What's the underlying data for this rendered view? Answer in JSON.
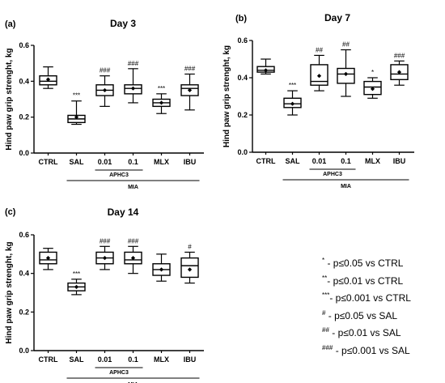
{
  "chart_data": [
    {
      "type": "box",
      "label": "(a)",
      "title": "Day 3",
      "ylabel": "Hind paw grip strenght, kg",
      "ylim": [
        0.0,
        0.6
      ],
      "yticks": [
        "0.0",
        "0.2",
        "0.4",
        "0.6"
      ],
      "categories": [
        "CTRL",
        "SAL",
        "0.01",
        "0.1",
        "MLX",
        "IBU"
      ],
      "subgroup_label": "APHC3",
      "group_label": "MIA",
      "significance": [
        "",
        "***",
        "###",
        "###",
        "***",
        "###"
      ],
      "boxes": [
        {
          "min": 0.36,
          "q1": 0.38,
          "median": 0.4,
          "q3": 0.43,
          "max": 0.48,
          "mean": 0.41
        },
        {
          "min": 0.16,
          "q1": 0.17,
          "median": 0.19,
          "q3": 0.21,
          "max": 0.29,
          "mean": 0.2
        },
        {
          "min": 0.26,
          "q1": 0.32,
          "median": 0.35,
          "q3": 0.38,
          "max": 0.43,
          "mean": 0.35
        },
        {
          "min": 0.28,
          "q1": 0.33,
          "median": 0.36,
          "q3": 0.38,
          "max": 0.47,
          "mean": 0.36
        },
        {
          "min": 0.22,
          "q1": 0.26,
          "median": 0.28,
          "q3": 0.3,
          "max": 0.33,
          "mean": 0.28
        },
        {
          "min": 0.24,
          "q1": 0.32,
          "median": 0.36,
          "q3": 0.38,
          "max": 0.44,
          "mean": 0.35
        }
      ]
    },
    {
      "type": "box",
      "label": "(b)",
      "title": "Day 7",
      "ylabel": "Hind paw grip strenght, kg",
      "ylim": [
        0.0,
        0.6
      ],
      "yticks": [
        "0.0",
        "0.2",
        "0.4",
        "0.6"
      ],
      "categories": [
        "CTRL",
        "SAL",
        "0.01",
        "0.1",
        "MLX",
        "IBU"
      ],
      "subgroup_label": "APHC3",
      "group_label": "MIA",
      "significance": [
        "",
        "***",
        "##",
        "##",
        "*",
        "###"
      ],
      "boxes": [
        {
          "min": 0.42,
          "q1": 0.43,
          "median": 0.44,
          "q3": 0.46,
          "max": 0.5,
          "mean": 0.44
        },
        {
          "min": 0.2,
          "q1": 0.24,
          "median": 0.26,
          "q3": 0.29,
          "max": 0.33,
          "mean": 0.26
        },
        {
          "min": 0.33,
          "q1": 0.36,
          "median": 0.38,
          "q3": 0.47,
          "max": 0.52,
          "mean": 0.41
        },
        {
          "min": 0.3,
          "q1": 0.37,
          "median": 0.42,
          "q3": 0.45,
          "max": 0.55,
          "mean": 0.42
        },
        {
          "min": 0.29,
          "q1": 0.31,
          "median": 0.35,
          "q3": 0.38,
          "max": 0.4,
          "mean": 0.34
        },
        {
          "min": 0.36,
          "q1": 0.39,
          "median": 0.42,
          "q3": 0.47,
          "max": 0.49,
          "mean": 0.43
        }
      ]
    },
    {
      "type": "box",
      "label": "(c)",
      "title": "Day 14",
      "ylabel": "Hind paw grip strenght, kg",
      "ylim": [
        0.0,
        0.6
      ],
      "yticks": [
        "0.0",
        "0.2",
        "0.4",
        "0.6"
      ],
      "categories": [
        "CTRL",
        "SAL",
        "0.01",
        "0.1",
        "MLX",
        "IBU"
      ],
      "subgroup_label": "APHC3",
      "group_label": "MIA",
      "significance": [
        "",
        "***",
        "###",
        "###",
        "",
        "#"
      ],
      "boxes": [
        {
          "min": 0.42,
          "q1": 0.45,
          "median": 0.47,
          "q3": 0.51,
          "max": 0.53,
          "mean": 0.48
        },
        {
          "min": 0.29,
          "q1": 0.31,
          "median": 0.33,
          "q3": 0.35,
          "max": 0.37,
          "mean": 0.33
        },
        {
          "min": 0.42,
          "q1": 0.45,
          "median": 0.48,
          "q3": 0.51,
          "max": 0.54,
          "mean": 0.48
        },
        {
          "min": 0.4,
          "q1": 0.45,
          "median": 0.47,
          "q3": 0.51,
          "max": 0.54,
          "mean": 0.48
        },
        {
          "min": 0.36,
          "q1": 0.39,
          "median": 0.42,
          "q3": 0.45,
          "max": 0.5,
          "mean": 0.42
        },
        {
          "min": 0.35,
          "q1": 0.38,
          "median": 0.44,
          "q3": 0.48,
          "max": 0.51,
          "mean": 0.42
        }
      ]
    }
  ],
  "legend": [
    {
      "mark": "*",
      "text": " - p≤0.05 vs CTRL"
    },
    {
      "mark": "**",
      "text": "- p≤0.01 vs CTRL"
    },
    {
      "mark": "***",
      "text": "- p≤0.001 vs CTRL"
    },
    {
      "mark": "#",
      "text": " - p≤0.05 vs SAL"
    },
    {
      "mark": "##",
      "text": " - p≤0.01 vs SAL"
    },
    {
      "mark": "###",
      "text": " - p≤0.001 vs SAL"
    }
  ]
}
